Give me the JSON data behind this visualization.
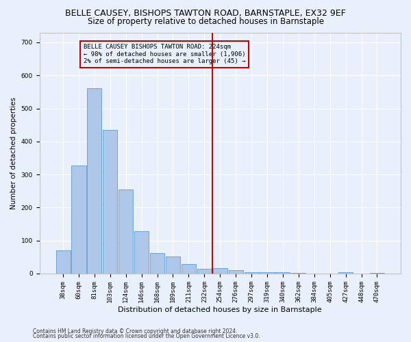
{
  "title1": "BELLE CAUSEY, BISHOPS TAWTON ROAD, BARNSTAPLE, EX32 9EF",
  "title2": "Size of property relative to detached houses in Barnstaple",
  "xlabel": "Distribution of detached houses by size in Barnstaple",
  "ylabel": "Number of detached properties",
  "categories": [
    "38sqm",
    "60sqm",
    "81sqm",
    "103sqm",
    "124sqm",
    "146sqm",
    "168sqm",
    "189sqm",
    "211sqm",
    "232sqm",
    "254sqm",
    "276sqm",
    "297sqm",
    "319sqm",
    "340sqm",
    "362sqm",
    "384sqm",
    "405sqm",
    "427sqm",
    "448sqm",
    "470sqm"
  ],
  "values": [
    70,
    327,
    562,
    435,
    255,
    128,
    62,
    52,
    28,
    14,
    17,
    10,
    5,
    5,
    4,
    1,
    0,
    0,
    5,
    0,
    3
  ],
  "bar_color": "#aec6e8",
  "bar_edge_color": "#5b9bd5",
  "vline_color": "#c00000",
  "vline_pos": 9.5,
  "annotation_text": "BELLE CAUSEY BISHOPS TAWTON ROAD: 224sqm\n← 98% of detached houses are smaller (1,906)\n2% of semi-detached houses are larger (45) →",
  "annotation_box_color": "#c00000",
  "footnote1": "Contains HM Land Registry data © Crown copyright and database right 2024.",
  "footnote2": "Contains public sector information licensed under the Open Government Licence v3.0.",
  "ylim": [
    0,
    730
  ],
  "yticks": [
    0,
    100,
    200,
    300,
    400,
    500,
    600,
    700
  ],
  "background_color": "#eaf0fb",
  "grid_color": "#ffffff",
  "title_fontsize": 9,
  "subtitle_fontsize": 8.5,
  "xlabel_fontsize": 8,
  "ylabel_fontsize": 7.5,
  "tick_fontsize": 6.5,
  "annot_fontsize": 6.5,
  "footnote_fontsize": 5.5
}
